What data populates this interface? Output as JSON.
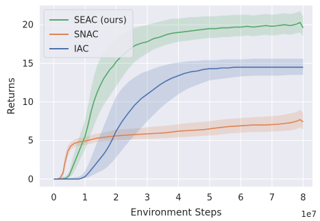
{
  "chart_data": {
    "type": "line",
    "title": "",
    "xlabel": "Environment Steps",
    "ylabel": "Returns",
    "x_multiplier_label": "1e7",
    "xlim": [
      -0.45,
      8.3
    ],
    "ylim": [
      -1,
      22.5
    ],
    "xticks": [
      0,
      1,
      2,
      3,
      4,
      5,
      6,
      7,
      8
    ],
    "yticks": [
      0,
      5,
      10,
      15,
      20
    ],
    "grid": true,
    "background": "#eaeaf2",
    "legend_position": "top-left",
    "series": [
      {
        "name": "SEAC (ours)",
        "color": "#55a868",
        "x": [
          0,
          0.2,
          0.4,
          0.5,
          0.6,
          0.7,
          0.8,
          0.9,
          1.0,
          1.1,
          1.2,
          1.3,
          1.4,
          1.5,
          1.6,
          1.7,
          1.8,
          1.9,
          2.0,
          2.2,
          2.4,
          2.6,
          2.8,
          3.0,
          3.2,
          3.4,
          3.6,
          3.8,
          4.0,
          4.2,
          4.4,
          4.6,
          4.8,
          5.0,
          5.2,
          5.4,
          5.6,
          5.8,
          6.0,
          6.2,
          6.4,
          6.6,
          6.8,
          7.0,
          7.2,
          7.4,
          7.6,
          7.8,
          7.9,
          8.0
        ],
        "y": [
          0,
          0,
          0.1,
          0.5,
          1.5,
          2.5,
          3.5,
          4.5,
          5.5,
          7.0,
          8.8,
          10.2,
          11.3,
          12.2,
          13.0,
          13.6,
          14.2,
          14.6,
          15.2,
          16.0,
          16.7,
          17.3,
          17.6,
          17.8,
          18.2,
          18.4,
          18.7,
          18.9,
          19.0,
          19.1,
          19.2,
          19.3,
          19.4,
          19.5,
          19.5,
          19.6,
          19.6,
          19.7,
          19.7,
          19.8,
          19.7,
          19.8,
          19.9,
          19.8,
          19.9,
          20.0,
          19.9,
          20.1,
          20.3,
          19.6
        ],
        "band_low": [
          0,
          0,
          0,
          0.1,
          0.6,
          1.3,
          2.2,
          3.0,
          3.8,
          4.8,
          6.0,
          7.0,
          8.0,
          8.8,
          9.6,
          10.2,
          10.8,
          11.4,
          12.0,
          13.2,
          14.3,
          15.2,
          15.8,
          16.3,
          16.8,
          17.1,
          17.4,
          17.6,
          17.8,
          17.9,
          18.0,
          18.1,
          18.2,
          18.3,
          18.3,
          18.4,
          18.4,
          18.5,
          18.5,
          18.6,
          18.5,
          18.6,
          18.7,
          18.6,
          18.7,
          18.8,
          18.7,
          18.9,
          19.0,
          18.5
        ],
        "band_high": [
          0,
          0.1,
          0.4,
          1.0,
          2.6,
          4.0,
          5.2,
          6.4,
          7.6,
          9.5,
          11.8,
          13.5,
          14.8,
          15.6,
          16.4,
          17.0,
          17.4,
          17.8,
          18.2,
          18.8,
          19.2,
          19.6,
          19.8,
          20.0,
          20.2,
          20.4,
          20.6,
          20.8,
          20.8,
          20.9,
          21.0,
          21.0,
          21.1,
          21.1,
          21.1,
          21.2,
          21.2,
          21.3,
          21.3,
          21.3,
          21.2,
          21.3,
          21.4,
          21.3,
          21.4,
          21.5,
          21.4,
          21.6,
          21.8,
          21.0
        ]
      },
      {
        "name": "SNAC",
        "color": "#dd8452",
        "x": [
          0,
          0.1,
          0.2,
          0.3,
          0.35,
          0.45,
          0.55,
          0.65,
          0.8,
          1.0,
          1.2,
          1.4,
          1.6,
          1.8,
          2.0,
          2.4,
          2.8,
          3.2,
          3.6,
          4.0,
          4.4,
          4.8,
          5.2,
          5.6,
          6.0,
          6.4,
          6.8,
          7.2,
          7.6,
          7.8,
          7.9,
          8.0
        ],
        "y": [
          0,
          0,
          0.1,
          0.8,
          2.0,
          3.6,
          4.3,
          4.6,
          4.8,
          4.9,
          5.1,
          5.3,
          5.4,
          5.5,
          5.6,
          5.7,
          5.8,
          5.9,
          6.0,
          6.2,
          6.3,
          6.4,
          6.6,
          6.8,
          6.9,
          7.0,
          7.0,
          7.1,
          7.3,
          7.5,
          7.7,
          7.4
        ],
        "band_low": [
          0,
          0,
          0,
          0.3,
          1.2,
          2.9,
          3.8,
          4.1,
          4.3,
          4.4,
          4.6,
          4.8,
          4.9,
          4.9,
          5.0,
          5.1,
          5.2,
          5.2,
          5.3,
          5.4,
          5.5,
          5.6,
          5.7,
          5.9,
          6.0,
          6.1,
          6.1,
          6.2,
          6.3,
          6.5,
          6.7,
          6.4
        ],
        "band_high": [
          0,
          0,
          0.3,
          1.3,
          2.8,
          4.3,
          4.8,
          5.1,
          5.3,
          5.4,
          5.7,
          5.9,
          6.0,
          6.2,
          6.4,
          6.5,
          6.6,
          6.8,
          6.9,
          7.1,
          7.3,
          7.4,
          7.6,
          7.8,
          7.9,
          8.0,
          8.1,
          8.2,
          8.5,
          8.7,
          9.0,
          8.6
        ]
      },
      {
        "name": "IAC",
        "color": "#4c72b0",
        "x": [
          0,
          0.5,
          0.8,
          0.9,
          1.0,
          1.1,
          1.2,
          1.3,
          1.4,
          1.5,
          1.6,
          1.7,
          1.8,
          1.9,
          2.0,
          2.2,
          2.4,
          2.6,
          2.8,
          3.0,
          3.2,
          3.4,
          3.6,
          3.8,
          4.0,
          4.2,
          4.4,
          4.6,
          4.8,
          5.0,
          5.2,
          5.4,
          5.6,
          5.8,
          6.0,
          6.4,
          6.8,
          7.2,
          7.6,
          8.0
        ],
        "y": [
          0,
          0,
          0,
          0.1,
          0.3,
          0.7,
          1.2,
          1.7,
          2.2,
          2.7,
          3.2,
          3.8,
          4.5,
          5.3,
          6.2,
          7.5,
          8.6,
          9.6,
          10.4,
          11.0,
          11.6,
          12.2,
          12.7,
          13.1,
          13.4,
          13.7,
          13.9,
          14.0,
          14.2,
          14.3,
          14.3,
          14.4,
          14.4,
          14.5,
          14.5,
          14.5,
          14.5,
          14.5,
          14.5,
          14.5
        ],
        "band_low": [
          0,
          0,
          0,
          0,
          0.1,
          0.2,
          0.4,
          0.6,
          0.8,
          1.0,
          1.2,
          1.5,
          1.9,
          2.3,
          2.8,
          3.8,
          4.8,
          5.7,
          6.6,
          7.5,
          8.3,
          9.1,
          9.8,
          10.4,
          11.0,
          11.5,
          11.9,
          12.2,
          12.5,
          12.8,
          12.9,
          13.0,
          13.1,
          13.2,
          13.3,
          13.4,
          13.4,
          13.4,
          13.5,
          13.5
        ],
        "band_high": [
          0,
          0.1,
          0.3,
          0.5,
          1.0,
          1.8,
          2.8,
          3.8,
          4.8,
          5.8,
          6.8,
          7.8,
          8.8,
          9.8,
          10.7,
          11.8,
          12.6,
          13.2,
          13.7,
          14.0,
          14.3,
          14.6,
          14.8,
          15.0,
          15.1,
          15.2,
          15.3,
          15.3,
          15.4,
          15.4,
          15.4,
          15.5,
          15.5,
          15.5,
          15.5,
          15.6,
          15.6,
          15.6,
          15.6,
          15.6
        ]
      }
    ]
  }
}
